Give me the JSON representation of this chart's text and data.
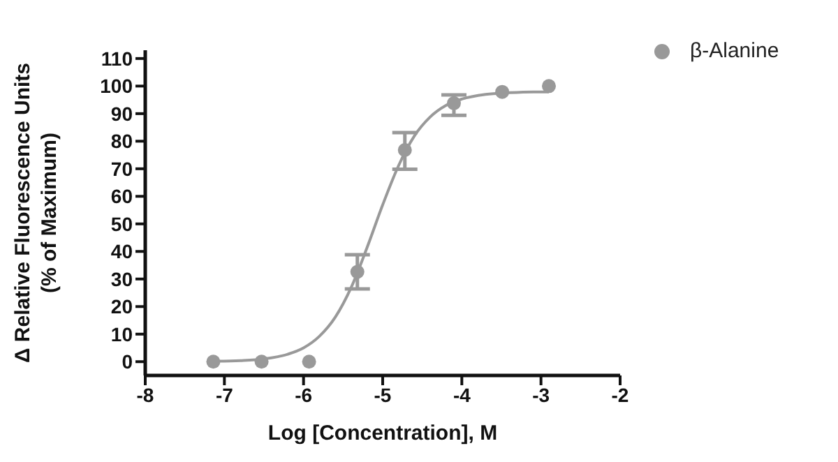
{
  "chart_data": {
    "type": "scatter",
    "xlabel": "Log [Concentration], M",
    "ylabel": "Δ Relative Fluorescence Units\n(% of Maximum)",
    "xlim": [
      -8,
      -2
    ],
    "xticks": [
      -8,
      -7,
      -6,
      -5,
      -4,
      -3,
      -2
    ],
    "ylim": [
      -5,
      113
    ],
    "yticks": [
      0,
      10,
      20,
      30,
      40,
      50,
      60,
      70,
      80,
      90,
      100,
      110
    ],
    "grid": false,
    "legend": "top right",
    "marker": "circle",
    "series": [
      {
        "name": "β-Alanine",
        "color": "#999999",
        "x": [
          -7.14,
          -6.53,
          -5.93,
          -5.32,
          -4.72,
          -4.1,
          -3.49,
          -2.9
        ],
        "values": [
          0,
          0,
          0,
          32.6,
          76.8,
          93.8,
          97.9,
          100
        ],
        "errors": [
          null,
          null,
          null,
          [
            26.4,
            38.8
          ],
          [
            69.8,
            83.1
          ],
          [
            89.4,
            96.8
          ],
          null,
          null
        ]
      },
      {
        "type": "line",
        "color": "#999999",
        "marker": "none",
        "line_style": "solid",
        "x": [
          -7.1,
          -6.8,
          -6.5,
          -6.2,
          -6.0,
          -5.8,
          -5.6,
          -5.4,
          -5.2,
          -5.0,
          -4.8,
          -4.6,
          -4.4,
          -4.2,
          -4.0,
          -3.7,
          -3.4,
          -3.1,
          -2.9
        ],
        "values": [
          0.2,
          0.4,
          1,
          2.7,
          5,
          9.2,
          16.1,
          26.8,
          41.2,
          56.9,
          71.1,
          81.9,
          88.8,
          93,
          95.3,
          97,
          97.6,
          97.9,
          97.9
        ]
      }
    ]
  }
}
